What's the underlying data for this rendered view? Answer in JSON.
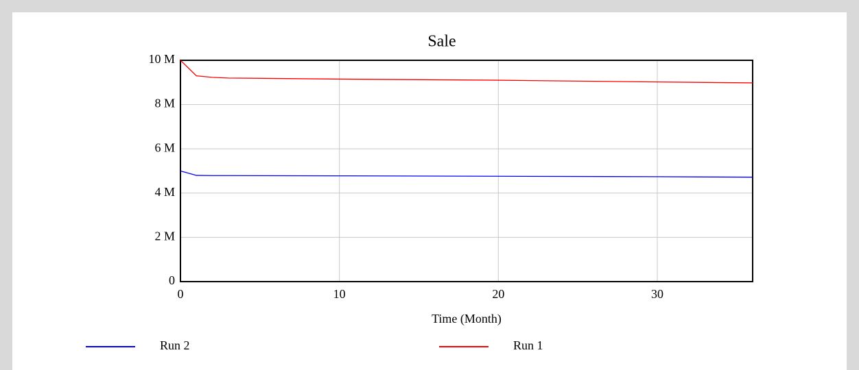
{
  "chart_data": {
    "type": "line",
    "title": "Sale",
    "x_label": "Time (Month)",
    "x": [
      0,
      1,
      2,
      3,
      10,
      20,
      30,
      36
    ],
    "series": [
      {
        "name": "Run 2",
        "color": "#0000ff",
        "values": [
          5000000,
          4800000,
          4790000,
          4790000,
          4780000,
          4760000,
          4740000,
          4720000
        ]
      },
      {
        "name": "Run 1",
        "color": "#ff0000",
        "values": [
          10000000,
          9300000,
          9230000,
          9200000,
          9150000,
          9100000,
          9020000,
          8980000
        ]
      }
    ],
    "xlim": [
      0,
      36
    ],
    "xticks": [
      0,
      10,
      20,
      30
    ],
    "ylim": [
      0,
      10000000
    ],
    "yticks": [
      0,
      {
        "value": 2000000,
        "label": "2 M"
      },
      {
        "value": 4000000,
        "label": "4 M"
      },
      {
        "value": 6000000,
        "label": "6 M"
      },
      {
        "value": 8000000,
        "label": "8 M"
      },
      {
        "value": 10000000,
        "label": "10 M"
      }
    ],
    "grid": true,
    "legend": "bottom"
  }
}
